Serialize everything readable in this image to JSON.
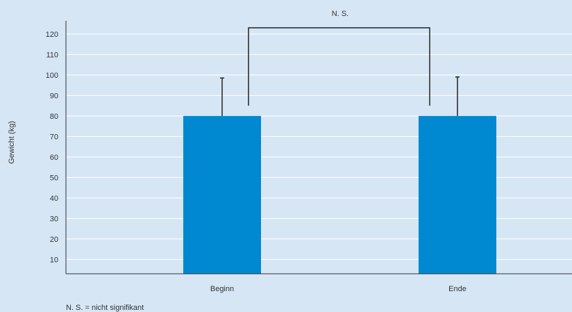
{
  "chart_data": {
    "type": "bar",
    "categories": [
      "Beginn",
      "Ende"
    ],
    "values": [
      80,
      80
    ],
    "error_upper": [
      98.5,
      99
    ],
    "ylabel": "Gewicht (kg)",
    "xlabel": "",
    "yticks": [
      10,
      20,
      30,
      40,
      50,
      60,
      70,
      80,
      90,
      100,
      110,
      120
    ],
    "ylim": [
      3,
      123
    ],
    "grid": true,
    "significance": {
      "label": "N. S.",
      "bracket_y": 123,
      "bracket_drop_to": 85
    },
    "footnote": "N. S. = nicht signifikant",
    "colors": {
      "bar": "#0088d1",
      "background": "#d6e6f5",
      "grid": "#ffffff",
      "axis": "#333333",
      "line": "#222222"
    }
  }
}
